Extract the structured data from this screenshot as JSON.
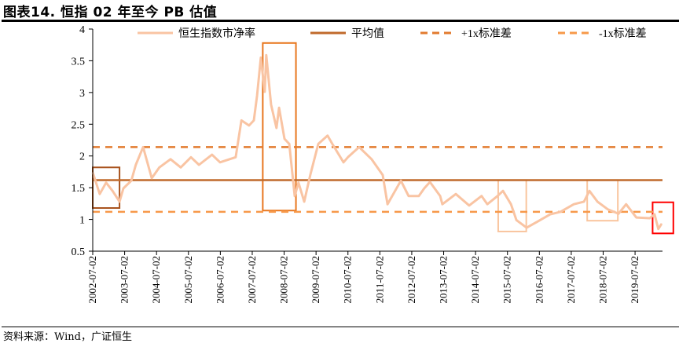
{
  "title": "图表14.  恒指 02 年至今 PB 估值",
  "source": "资料来源：Wind，广证恒生",
  "chart_data": {
    "type": "line",
    "title": "恒指 02 年至今 PB 估值",
    "xlabel": "",
    "ylabel": "",
    "ylim": [
      0.5,
      4
    ],
    "yticks": [
      "0.5",
      "1",
      "1.5",
      "2",
      "2.5",
      "3",
      "3.5",
      "4"
    ],
    "xlim": [
      2002.5,
      2020.36
    ],
    "xtick_labels": [
      "2002-07-02",
      "2003-07-02",
      "2004-07-02",
      "2005-07-02",
      "2006-07-02",
      "2007-07-02",
      "2008-07-02",
      "2009-07-02",
      "2010-07-02",
      "2011-07-02",
      "2012-07-02",
      "2013-07-02",
      "2014-07-02",
      "2015-07-02",
      "2016-07-02",
      "2017-07-02",
      "2018-07-02",
      "2019-07-02"
    ],
    "legend_position": "top",
    "series": [
      {
        "name": "恒生指数市净率",
        "color": "#f9c4a3",
        "style": "solid",
        "x": [
          2002.5,
          2002.72,
          2002.92,
          2003.12,
          2003.34,
          2003.46,
          2003.71,
          2003.85,
          2004.08,
          2004.35,
          2004.59,
          2004.94,
          2005.26,
          2005.58,
          2005.83,
          2006.24,
          2006.49,
          2006.98,
          2007.16,
          2007.4,
          2007.55,
          2007.65,
          2007.77,
          2007.89,
          2007.94,
          2008.09,
          2008.26,
          2008.34,
          2008.51,
          2008.66,
          2008.83,
          2008.95,
          2009.13,
          2009.32,
          2009.57,
          2009.86,
          2010.01,
          2010.36,
          2010.5,
          2010.85,
          2011.24,
          2011.59,
          2011.74,
          2012.16,
          2012.4,
          2012.72,
          2012.89,
          2013.07,
          2013.39,
          2013.46,
          2013.88,
          2014.3,
          2014.69,
          2014.87,
          2015.19,
          2015.36,
          2015.61,
          2015.78,
          2016.1,
          2016.42,
          2016.84,
          2017.16,
          2017.58,
          2017.9,
          2018.07,
          2018.32,
          2018.64,
          2018.98,
          2019.22,
          2019.54,
          2019.96,
          2020.11,
          2020.23,
          2020.33
        ],
        "values": [
          1.74,
          1.4,
          1.58,
          1.45,
          1.28,
          1.49,
          1.61,
          1.86,
          2.14,
          1.65,
          1.82,
          1.95,
          1.82,
          1.98,
          1.86,
          2.02,
          1.9,
          1.98,
          2.56,
          2.48,
          2.56,
          2.95,
          3.55,
          3.01,
          3.59,
          2.81,
          2.44,
          2.76,
          2.27,
          2.19,
          1.37,
          1.58,
          1.28,
          1.7,
          2.19,
          2.32,
          2.19,
          1.9,
          1.98,
          2.14,
          1.95,
          1.7,
          1.24,
          1.61,
          1.37,
          1.37,
          1.49,
          1.59,
          1.37,
          1.24,
          1.4,
          1.22,
          1.37,
          1.24,
          1.37,
          1.45,
          1.24,
          0.99,
          0.87,
          0.96,
          1.08,
          1.12,
          1.24,
          1.28,
          1.45,
          1.28,
          1.16,
          1.09,
          1.24,
          1.03,
          1.02,
          1.08,
          0.85,
          0.93
        ]
      },
      {
        "name": "平均值",
        "color": "#c06a2b",
        "style": "solid",
        "value": 1.62
      },
      {
        "name": "+1x标准差",
        "color": "#e27b2f",
        "style": "dashed",
        "value": 2.14
      },
      {
        "name": "-1x标准差",
        "color": "#f7994a",
        "style": "dashed",
        "value": 1.12
      }
    ],
    "annotations": [
      {
        "type": "box",
        "color": "#a8521c",
        "x": [
          2002.5,
          2003.34
        ],
        "y": [
          1.18,
          1.82
        ]
      },
      {
        "type": "box",
        "color": "#e8771f",
        "x": [
          2007.83,
          2008.87
        ],
        "y": [
          1.14,
          3.78
        ]
      },
      {
        "type": "box",
        "color": "#f9c59e",
        "x": [
          2015.21,
          2016.09
        ],
        "y": [
          0.81,
          1.62
        ]
      },
      {
        "type": "box",
        "color": "#f9c59e",
        "x": [
          2018.0,
          2018.96
        ],
        "y": [
          0.98,
          1.62
        ]
      },
      {
        "type": "box",
        "color": "#ff0000",
        "x": [
          2020.05,
          2020.7
        ],
        "y": [
          0.78,
          1.27
        ]
      }
    ]
  }
}
